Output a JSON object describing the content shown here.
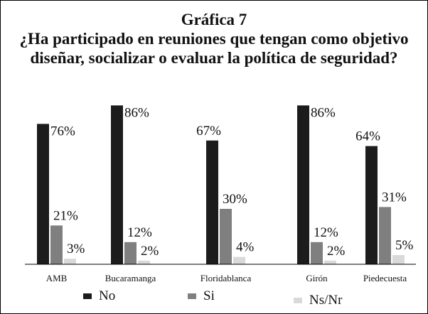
{
  "chart_data": {
    "type": "bar",
    "title": "Gráfica 7",
    "subtitle": "¿Ha participado en reuniones que tengan como objetivo diseñar, socializar o evaluar la política de seguridad?",
    "categories": [
      "AMB",
      "Bucaramanga",
      "Floridablanca",
      "Girón",
      "Piedecuesta"
    ],
    "series": [
      {
        "name": "No",
        "color": "#1c1c1c",
        "values": [
          76,
          86,
          67,
          86,
          64
        ],
        "value_labels": [
          "76%",
          "86%",
          "67%",
          "86%",
          "64%"
        ]
      },
      {
        "name": "Si",
        "color": "#7f7f7f",
        "values": [
          21,
          12,
          30,
          12,
          31
        ],
        "value_labels": [
          "21%",
          "12%",
          "30%",
          "12%",
          "31%"
        ]
      },
      {
        "name": "Ns/Nr",
        "color": "#d9d9d9",
        "values": [
          3,
          2,
          4,
          2,
          5
        ],
        "value_labels": [
          "3%",
          "2%",
          "4%",
          "2%",
          "5%"
        ]
      }
    ],
    "legend": "bottom"
  }
}
